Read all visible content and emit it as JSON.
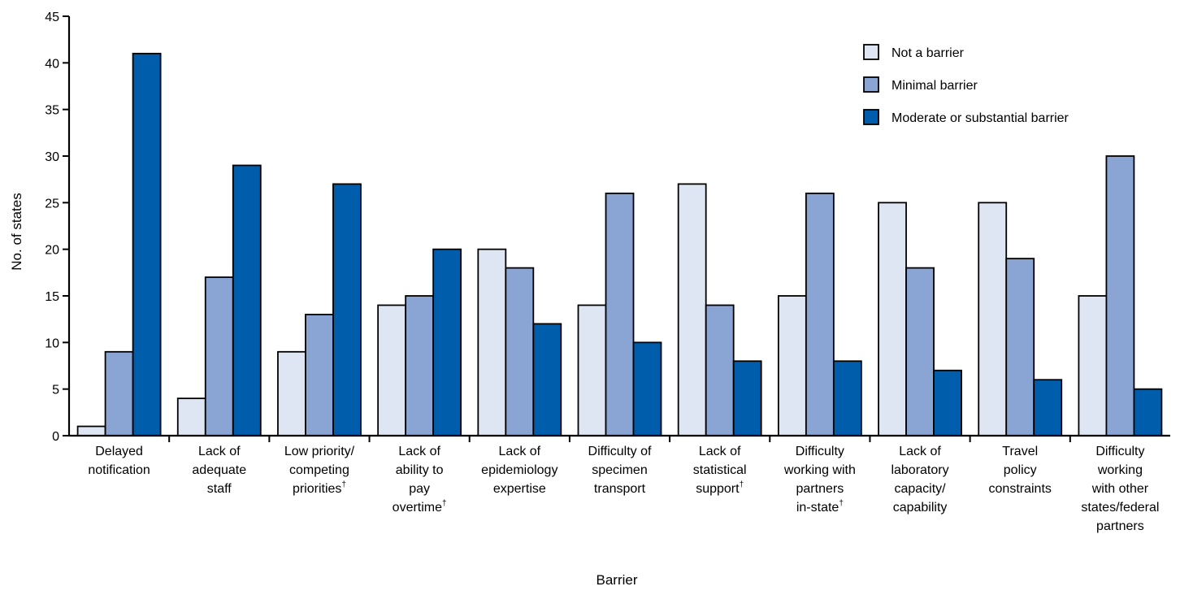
{
  "chart_data": {
    "type": "bar",
    "title": "",
    "xlabel": "Barrier",
    "ylabel": "No. of states",
    "ylim": [
      0,
      45
    ],
    "yticks": [
      0,
      5,
      10,
      15,
      20,
      25,
      30,
      35,
      40,
      45
    ],
    "grid": false,
    "legend_position": "top-right",
    "categories": [
      [
        "Delayed",
        "notification"
      ],
      [
        "Lack of",
        "adequate",
        "staff"
      ],
      [
        "Low priority/",
        "competing",
        "priorities†"
      ],
      [
        "Lack of",
        "ability to",
        "pay",
        "overtime†"
      ],
      [
        "Lack of",
        "epidemiology",
        "expertise"
      ],
      [
        "Difficulty of",
        "specimen",
        "transport"
      ],
      [
        "Lack of",
        "statistical",
        "support†"
      ],
      [
        "Difficulty",
        "working with",
        "partners",
        "in-state†"
      ],
      [
        "Lack of",
        "laboratory",
        "capacity/",
        "capability"
      ],
      [
        "Travel",
        "policy",
        "constraints"
      ],
      [
        "Difficulty",
        "working",
        "with other",
        "states/federal",
        "partners"
      ]
    ],
    "series": [
      {
        "name": "Not a barrier",
        "color": "#dfe6f3",
        "values": [
          1,
          4,
          9,
          14,
          20,
          14,
          27,
          15,
          25,
          25,
          15
        ]
      },
      {
        "name": "Minimal barrier",
        "color": "#8aa4d3",
        "values": [
          9,
          17,
          13,
          15,
          18,
          26,
          14,
          26,
          18,
          19,
          30
        ]
      },
      {
        "name": "Moderate or substantial barrier",
        "color": "#005dab",
        "values": [
          41,
          29,
          27,
          20,
          12,
          10,
          8,
          8,
          7,
          6,
          5
        ]
      }
    ]
  }
}
